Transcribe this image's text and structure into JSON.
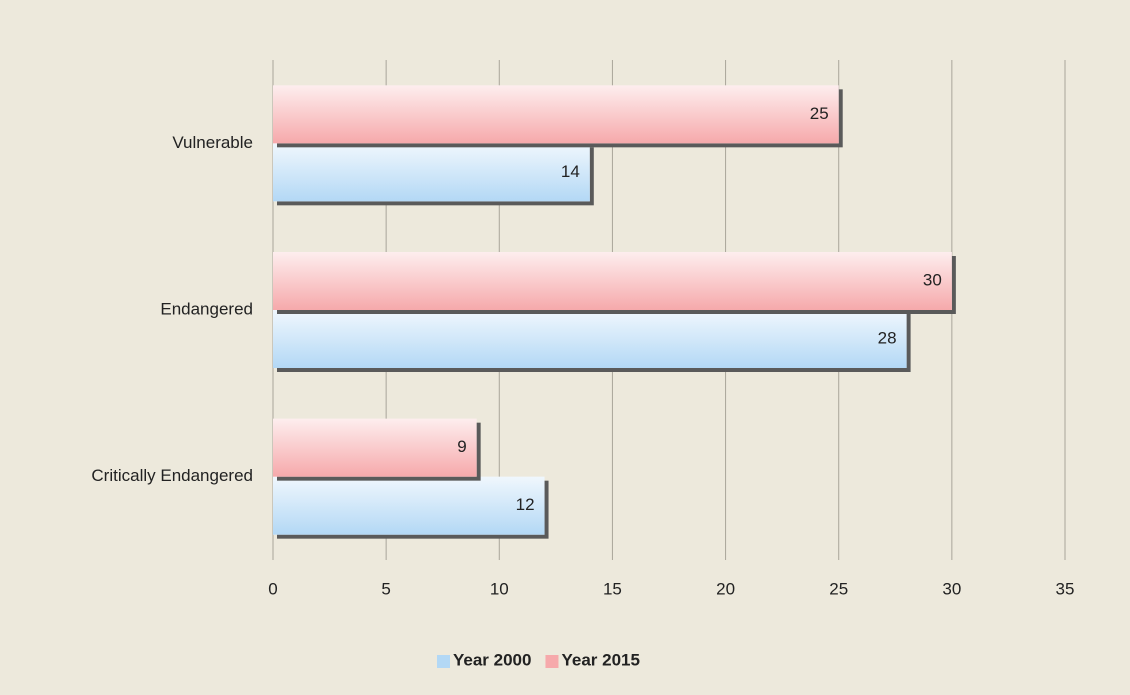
{
  "chart_data": {
    "type": "bar",
    "orientation": "horizontal",
    "categories": [
      "Vulnerable",
      "Endangered",
      "Critically Endangered"
    ],
    "series": [
      {
        "name": "Year 2000",
        "color": "#b3d8f5",
        "values": [
          14,
          28,
          12
        ]
      },
      {
        "name": "Year 2015",
        "color": "#f6a9ab",
        "values": [
          25,
          30,
          9
        ]
      }
    ],
    "xlim": [
      0,
      35
    ],
    "xticks": [
      0,
      5,
      10,
      15,
      20,
      25,
      30,
      35
    ],
    "grid": true,
    "legend": "bottom"
  }
}
